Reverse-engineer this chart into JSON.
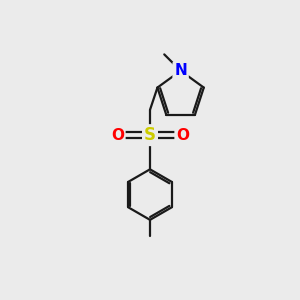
{
  "background_color": "#ebebeb",
  "bond_color": "#1a1a1a",
  "N_color": "#0000ff",
  "S_color": "#cccc00",
  "O_color": "#ff0000",
  "bond_width": 1.6,
  "fig_size": [
    3.0,
    3.0
  ],
  "dpi": 100,
  "xlim": [
    0,
    10
  ],
  "ylim": [
    0,
    10
  ]
}
